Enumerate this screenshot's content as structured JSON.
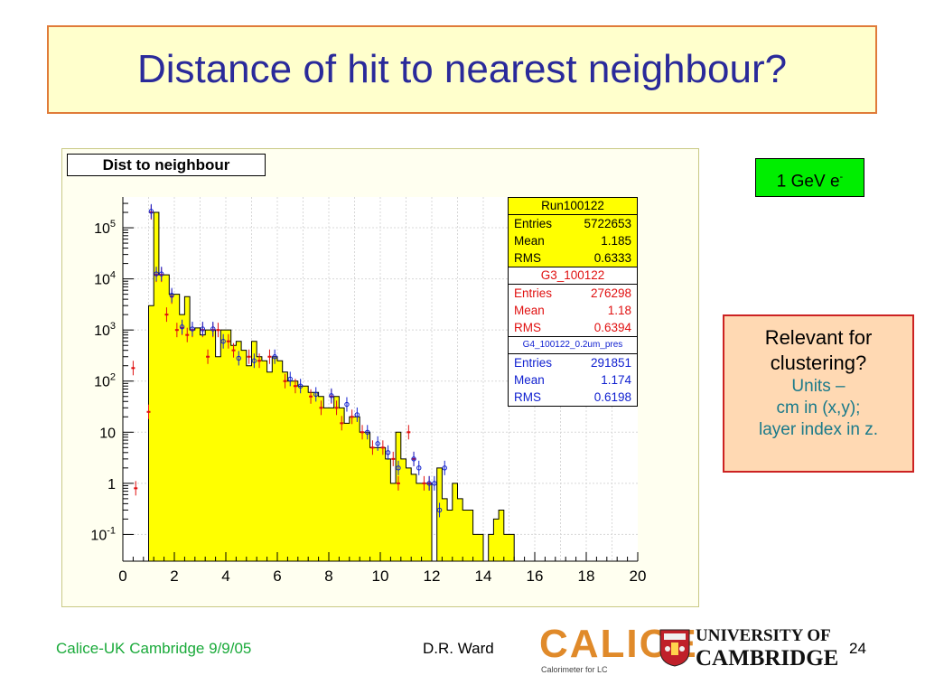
{
  "slide": {
    "title": "Distance of hit to nearest neighbour?",
    "energy_label": "1 GeV e",
    "energy_sup": "-",
    "note": {
      "line1": "Relevant for",
      "line2": "clustering?",
      "line3": "Units –",
      "line4": "cm in (x,y);",
      "line5": "layer index in z."
    },
    "footer_left": "Calice-UK Cambridge 9/9/05",
    "footer_author": "D.R. Ward",
    "page_number": "24",
    "calice_logo_text": "CALICE",
    "calice_logo_sub": "Calorimeter for LC",
    "uni_line1": "UNIVERSITY OF",
    "uni_line2": "CAMBRIDGE"
  },
  "colors": {
    "fill": "#ffff00",
    "data_red": "#e01010",
    "data_blue": "#1020d0",
    "title_text": "#2a2a9a"
  },
  "chart_data": {
    "type": "bar",
    "title": "Dist to neighbour",
    "y_scale": "log",
    "xlim": [
      0,
      20
    ],
    "ylim": [
      0.03,
      400000
    ],
    "x_ticks": [
      "0",
      "2",
      "4",
      "6",
      "8",
      "10",
      "12",
      "14",
      "16",
      "18",
      "20"
    ],
    "y_ticks": [
      {
        "value": 100000,
        "base": "10",
        "exp": "5"
      },
      {
        "value": 10000,
        "base": "10",
        "exp": "4"
      },
      {
        "value": 1000,
        "base": "10",
        "exp": "3"
      },
      {
        "value": 100,
        "base": "10",
        "exp": "2"
      },
      {
        "value": 10,
        "base": "10",
        "exp": ""
      },
      {
        "value": 1,
        "base": "1",
        "exp": ""
      },
      {
        "value": 0.1,
        "base": "10",
        "exp": "-1"
      }
    ],
    "grid": true,
    "bin_width": 0.2,
    "bin_start": 0,
    "series": [
      {
        "name": "Run100122",
        "style": "filled-histogram",
        "values": [
          0,
          0,
          0,
          0,
          0,
          3000,
          200000,
          12000,
          12000,
          5000,
          5000,
          2000,
          4500,
          1000,
          1100,
          800,
          1000,
          1000,
          300,
          1000,
          1000,
          500,
          600,
          400,
          200,
          600,
          300,
          250,
          150,
          300,
          250,
          150,
          100,
          100,
          80,
          80,
          60,
          60,
          50,
          30,
          30,
          50,
          30,
          15,
          20,
          20,
          10,
          10,
          5,
          5,
          5,
          3,
          1,
          10,
          3,
          2,
          1.5,
          1,
          1,
          1,
          0,
          2,
          0.5,
          0.3,
          1,
          0.5,
          0.3,
          0.3,
          0.1,
          0.1,
          0,
          0.1,
          0.2,
          0.3,
          0.1,
          0.1,
          0,
          0,
          0,
          0,
          0,
          0,
          0,
          0,
          0,
          0,
          0,
          0,
          0,
          0,
          0,
          0,
          0,
          0,
          0,
          0,
          0,
          0,
          0,
          0
        ]
      },
      {
        "name": "G3_100122",
        "style": "markers",
        "points": [
          [
            0.4,
            180
          ],
          [
            0.5,
            0.8
          ],
          [
            1.0,
            25
          ],
          [
            1.1,
            200000
          ],
          [
            1.3,
            12000
          ],
          [
            1.5,
            12000
          ],
          [
            1.7,
            2000
          ],
          [
            1.9,
            4500
          ],
          [
            2.1,
            1000
          ],
          [
            2.3,
            1100
          ],
          [
            2.5,
            800
          ],
          [
            2.7,
            1000
          ],
          [
            3.1,
            1000
          ],
          [
            3.3,
            300
          ],
          [
            3.5,
            1000
          ],
          [
            3.7,
            1000
          ],
          [
            4.1,
            600
          ],
          [
            4.3,
            400
          ],
          [
            4.9,
            300
          ],
          [
            5.3,
            250
          ],
          [
            5.7,
            300
          ],
          [
            6.3,
            100
          ],
          [
            6.7,
            80
          ],
          [
            7.3,
            50
          ],
          [
            7.7,
            30
          ],
          [
            8.1,
            50
          ],
          [
            8.3,
            30
          ],
          [
            8.5,
            15
          ],
          [
            8.9,
            20
          ],
          [
            9.3,
            10
          ],
          [
            9.7,
            5
          ],
          [
            10.1,
            5
          ],
          [
            10.5,
            3
          ],
          [
            10.7,
            1
          ],
          [
            11.1,
            10
          ],
          [
            11.3,
            3
          ],
          [
            11.7,
            1
          ],
          [
            11.9,
            1
          ]
        ]
      },
      {
        "name": "G4_100122_0.2um_pres",
        "style": "markers",
        "points": [
          [
            1.1,
            210000
          ],
          [
            1.3,
            12500
          ],
          [
            1.5,
            12500
          ],
          [
            1.9,
            4800
          ],
          [
            2.3,
            1150
          ],
          [
            2.7,
            1050
          ],
          [
            3.1,
            1050
          ],
          [
            3.5,
            1050
          ],
          [
            3.9,
            600
          ],
          [
            4.5,
            280
          ],
          [
            5.1,
            250
          ],
          [
            5.9,
            300
          ],
          [
            6.5,
            110
          ],
          [
            6.9,
            80
          ],
          [
            7.5,
            55
          ],
          [
            8.1,
            52
          ],
          [
            8.7,
            35
          ],
          [
            9.1,
            22
          ],
          [
            9.5,
            10
          ],
          [
            9.9,
            6
          ],
          [
            10.3,
            4
          ],
          [
            10.7,
            2
          ],
          [
            11.3,
            3
          ],
          [
            11.5,
            2
          ],
          [
            11.9,
            1
          ],
          [
            12.1,
            1
          ],
          [
            12.3,
            0.3
          ],
          [
            12.5,
            2
          ]
        ]
      }
    ],
    "stats": [
      {
        "name": "Run100122",
        "entries_label": "Entries",
        "entries": "5722653",
        "mean_label": "Mean",
        "mean": "1.185",
        "rms_label": "RMS",
        "rms": "0.6333"
      },
      {
        "name": "G3_100122",
        "entries_label": "Entries",
        "entries": "276298",
        "mean_label": "Mean",
        "mean": "1.18",
        "rms_label": "RMS",
        "rms": "0.6394"
      },
      {
        "name": "G4_100122_0.2um_pres",
        "entries_label": "Entries",
        "entries": "291851",
        "mean_label": "Mean",
        "mean": "1.174",
        "rms_label": "RMS",
        "rms": "0.6198"
      }
    ]
  }
}
